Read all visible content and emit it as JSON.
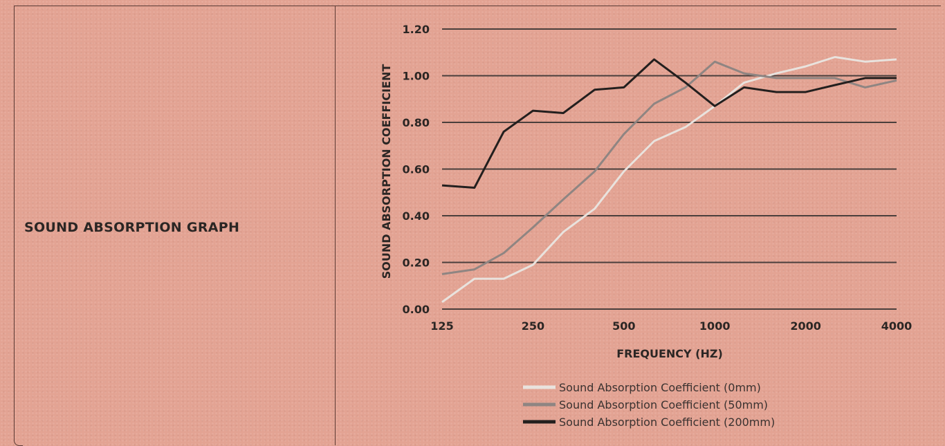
{
  "page": {
    "section_title": "SOUND ABSORPTION GRAPH"
  },
  "chart_data": {
    "type": "line",
    "xlabel": "FREQUENCY (HZ)",
    "ylabel": "SOUND ABSORPTION COEFFICIENT",
    "x_scale": "log",
    "x": [
      125,
      160,
      200,
      250,
      315,
      400,
      500,
      630,
      800,
      1000,
      1250,
      1600,
      2000,
      2500,
      3150,
      4000
    ],
    "x_ticks": [
      {
        "value": 125,
        "label": "125"
      },
      {
        "value": 250,
        "label": "250"
      },
      {
        "value": 500,
        "label": "500"
      },
      {
        "value": 1000,
        "label": "1000"
      },
      {
        "value": 2000,
        "label": "2000"
      },
      {
        "value": 4000,
        "label": "4000"
      }
    ],
    "y_ticks": [
      "0.00",
      "0.20",
      "0.40",
      "0.60",
      "0.80",
      "1.00",
      "1.20"
    ],
    "ylim": [
      0,
      1.2
    ],
    "grid": "horizontal",
    "legend_position": "bottom",
    "series": [
      {
        "name": "Sound Absorption Coefficient (0mm)",
        "color": "#e9e3de",
        "values": [
          0.03,
          0.13,
          0.13,
          0.19,
          0.33,
          0.43,
          0.59,
          0.72,
          0.78,
          0.87,
          0.97,
          1.01,
          1.04,
          1.08,
          1.06,
          1.07
        ]
      },
      {
        "name": "Sound Absorption Coefficient (50mm)",
        "color": "#8f8582",
        "values": [
          0.15,
          0.17,
          0.24,
          0.35,
          0.47,
          0.59,
          0.75,
          0.88,
          0.95,
          1.06,
          1.01,
          0.99,
          0.99,
          0.99,
          0.95,
          0.98
        ]
      },
      {
        "name": "Sound Absorption Coefficient (200mm)",
        "color": "#231f1e",
        "values": [
          0.53,
          0.52,
          0.76,
          0.85,
          0.84,
          0.94,
          0.95,
          1.07,
          0.97,
          0.87,
          0.95,
          0.93,
          0.93,
          0.96,
          0.99,
          0.99
        ]
      }
    ]
  }
}
